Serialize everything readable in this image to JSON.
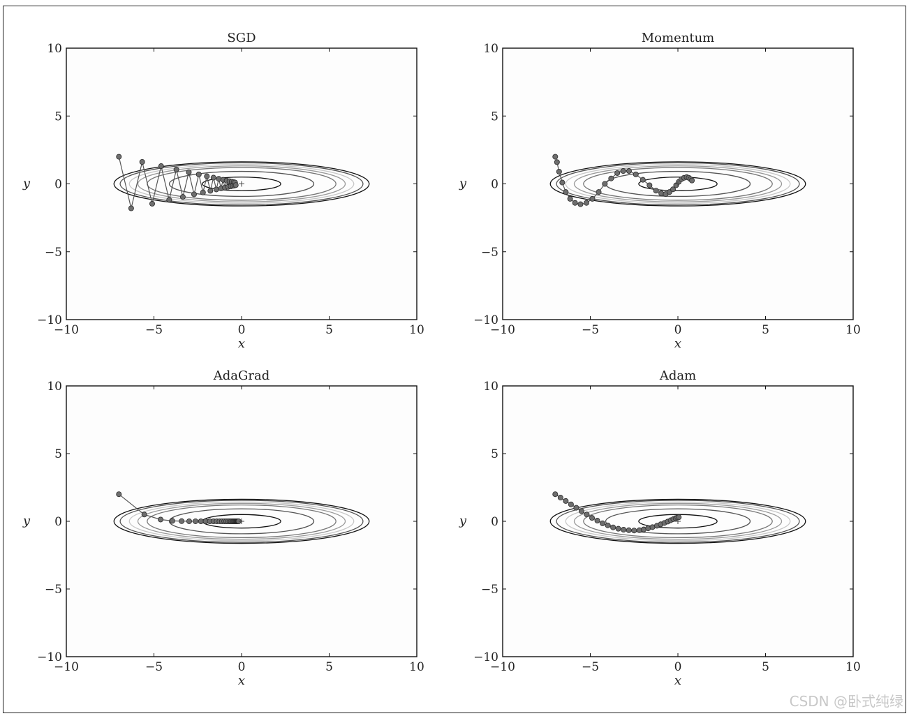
{
  "watermark": "CSDN @卧式纯绿",
  "chart_data": [
    {
      "type": "line",
      "title": "SGD",
      "xlabel": "x",
      "ylabel": "y",
      "xlim": [
        -10,
        10
      ],
      "ylim": [
        -10,
        10
      ],
      "xticks": [
        -10,
        -5,
        0,
        5,
        10
      ],
      "yticks": [
        -10,
        -5,
        0,
        5,
        10
      ],
      "xtick_labels": [
        "−10",
        "−5",
        "0",
        "5",
        "10"
      ],
      "ytick_labels": [
        "−10",
        "−5",
        "0",
        "5",
        "10"
      ],
      "contour_function": "x^2/20 + y^2",
      "contour_levels": [
        0.25,
        0.85,
        1.45,
        1.75,
        2.05,
        2.4,
        2.65
      ],
      "contour_shades": [
        "#111111",
        "#555555",
        "#777777",
        "#9a9a9a",
        "#c8c8c8",
        "#555555",
        "#111111"
      ],
      "minimum_marker": [
        0,
        0
      ],
      "series": [
        {
          "x": [
            -7.0,
            -6.3,
            -5.67,
            -5.1,
            -4.59,
            -4.13,
            -3.72,
            -3.35,
            -3.01,
            -2.71,
            -2.44,
            -2.2,
            -1.98,
            -1.78,
            -1.6,
            -1.44,
            -1.3,
            -1.17,
            -1.05,
            -0.95,
            -0.85,
            -0.77,
            -0.69,
            -0.62,
            -0.56,
            -0.5,
            -0.45,
            -0.41,
            -0.37,
            -0.33
          ],
          "y": [
            2.0,
            -1.8,
            1.62,
            -1.46,
            1.31,
            -1.18,
            1.06,
            -0.96,
            0.86,
            -0.77,
            0.7,
            -0.63,
            0.56,
            -0.51,
            0.46,
            -0.41,
            0.37,
            -0.33,
            0.3,
            -0.27,
            0.24,
            -0.22,
            0.2,
            -0.18,
            0.16,
            -0.14,
            0.13,
            -0.12,
            0.1,
            -0.09
          ]
        }
      ]
    },
    {
      "type": "line",
      "title": "Momentum",
      "xlabel": "x",
      "ylabel": "y",
      "xlim": [
        -10,
        10
      ],
      "ylim": [
        -10,
        10
      ],
      "xticks": [
        -10,
        -5,
        0,
        5,
        10
      ],
      "yticks": [
        -10,
        -5,
        0,
        5,
        10
      ],
      "xtick_labels": [
        "−10",
        "−5",
        "0",
        "5",
        "10"
      ],
      "ytick_labels": [
        "−10",
        "−5",
        "0",
        "5",
        "10"
      ],
      "contour_function": "x^2/20 + y^2",
      "contour_levels": [
        0.25,
        0.85,
        1.45,
        1.75,
        2.05,
        2.4,
        2.65
      ],
      "contour_shades": [
        "#111111",
        "#555555",
        "#777777",
        "#9a9a9a",
        "#c8c8c8",
        "#555555",
        "#111111"
      ],
      "minimum_marker": [
        0,
        0
      ],
      "series": [
        {
          "x": [
            -7.0,
            -6.9,
            -6.78,
            -6.6,
            -6.4,
            -6.15,
            -5.87,
            -5.56,
            -5.22,
            -4.88,
            -4.52,
            -4.17,
            -3.81,
            -3.46,
            -3.12,
            -2.79,
            -2.4,
            -2.0,
            -1.62,
            -1.25,
            -0.95,
            -0.7,
            -0.48,
            -0.28,
            -0.1,
            0.05,
            0.2,
            0.35,
            0.5,
            0.62,
            0.72,
            0.8
          ],
          "y": [
            2.0,
            1.6,
            0.9,
            0.1,
            -0.6,
            -1.1,
            -1.4,
            -1.5,
            -1.4,
            -1.1,
            -0.6,
            0.0,
            0.4,
            0.8,
            0.95,
            0.95,
            0.7,
            0.3,
            -0.1,
            -0.5,
            -0.7,
            -0.75,
            -0.6,
            -0.4,
            -0.1,
            0.15,
            0.35,
            0.45,
            0.5,
            0.45,
            0.35,
            0.25
          ]
        }
      ]
    },
    {
      "type": "line",
      "title": "AdaGrad",
      "xlabel": "x",
      "ylabel": "y",
      "xlim": [
        -10,
        10
      ],
      "ylim": [
        -10,
        10
      ],
      "xticks": [
        -10,
        -5,
        0,
        5,
        10
      ],
      "yticks": [
        -10,
        -5,
        0,
        5,
        10
      ],
      "xtick_labels": [
        "−10",
        "−5",
        "0",
        "5",
        "10"
      ],
      "ytick_labels": [
        "−10",
        "−5",
        "0",
        "5",
        "10"
      ],
      "contour_function": "x^2/20 + y^2",
      "contour_levels": [
        0.25,
        0.85,
        1.45,
        1.75,
        2.05,
        2.4,
        2.65
      ],
      "contour_shades": [
        "#111111",
        "#555555",
        "#777777",
        "#9a9a9a",
        "#c8c8c8",
        "#555555",
        "#111111"
      ],
      "minimum_marker": [
        0,
        0
      ],
      "series": [
        {
          "x": [
            -7.0,
            -5.55,
            -4.62,
            -3.95,
            -3.42,
            -2.99,
            -2.63,
            -2.32,
            -2.05,
            -1.81,
            -1.6,
            -1.42,
            -1.26,
            -1.12,
            -0.99,
            -0.88,
            -0.78,
            -0.69,
            -0.61,
            -0.54,
            -0.48,
            -0.43,
            -0.38,
            -0.34,
            -0.3,
            -0.27,
            -0.24,
            -0.21,
            -0.19,
            -0.17
          ],
          "y": [
            2.0,
            0.5,
            0.13,
            0.03,
            0.01,
            0.003,
            0.001,
            0.0,
            0.0,
            0.0,
            0.0,
            0.0,
            0.0,
            0.0,
            0.0,
            0.0,
            0.0,
            0.0,
            0.0,
            0.0,
            0.0,
            0.0,
            0.0,
            0.0,
            0.0,
            0.0,
            0.0,
            0.0,
            0.0,
            0.0
          ]
        }
      ]
    },
    {
      "type": "line",
      "title": "Adam",
      "xlabel": "x",
      "ylabel": "y",
      "xlim": [
        -10,
        10
      ],
      "ylim": [
        -10,
        10
      ],
      "xticks": [
        -10,
        -5,
        0,
        5,
        10
      ],
      "yticks": [
        -10,
        -5,
        0,
        5,
        10
      ],
      "xtick_labels": [
        "−10",
        "−5",
        "0",
        "5",
        "10"
      ],
      "ytick_labels": [
        "−10",
        "−5",
        "0",
        "5",
        "10"
      ],
      "contour_function": "x^2/20 + y^2",
      "contour_levels": [
        0.25,
        0.85,
        1.45,
        1.75,
        2.05,
        2.4,
        2.65
      ],
      "contour_shades": [
        "#111111",
        "#555555",
        "#777777",
        "#9a9a9a",
        "#c8c8c8",
        "#555555",
        "#111111"
      ],
      "minimum_marker": [
        0,
        0
      ],
      "series": [
        {
          "x": [
            -7.0,
            -6.7,
            -6.4,
            -6.1,
            -5.8,
            -5.5,
            -5.2,
            -4.9,
            -4.6,
            -4.3,
            -4.0,
            -3.7,
            -3.4,
            -3.1,
            -2.8,
            -2.5,
            -2.2,
            -1.95,
            -1.7,
            -1.45,
            -1.2,
            -0.98,
            -0.77,
            -0.58,
            -0.41,
            -0.26,
            -0.13,
            -0.03,
            0.05
          ],
          "y": [
            2.0,
            1.75,
            1.5,
            1.25,
            1.0,
            0.75,
            0.5,
            0.25,
            0.05,
            -0.15,
            -0.3,
            -0.45,
            -0.55,
            -0.62,
            -0.66,
            -0.68,
            -0.66,
            -0.6,
            -0.52,
            -0.43,
            -0.33,
            -0.22,
            -0.12,
            -0.02,
            0.08,
            0.16,
            0.23,
            0.28,
            0.3
          ]
        }
      ]
    }
  ]
}
